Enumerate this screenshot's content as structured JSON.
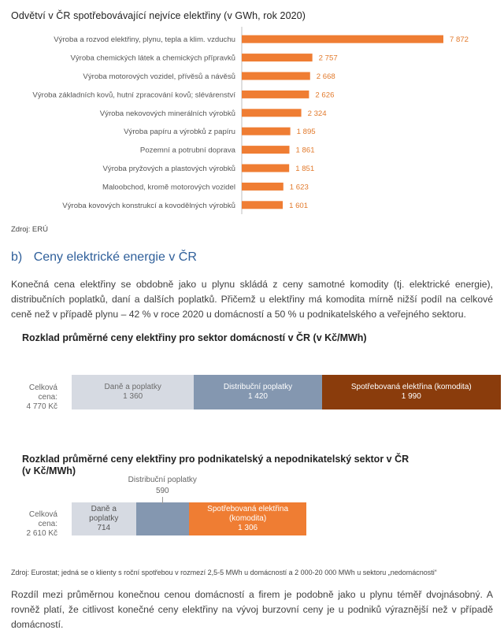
{
  "chart1": {
    "chart_data": {
      "type": "bar",
      "orientation": "horizontal",
      "title": "Odvětví v ČR spotřebovávající nejvíce elektřiny (v GWh, rok 2020)",
      "categories": [
        "Výroba a rozvod elektřiny, plynu, tepla a klim. vzduchu",
        "Výroba chemických látek a chemických přípravků",
        "Výroba motorových vozidel, přívěsů a návěsů",
        "Výroba základních kovů, hutní zpracování kovů; slévárenství",
        "Výroba nekovových minerálních výrobků",
        "Výroba papíru a výrobků z papíru",
        "Pozemní a potrubní doprava",
        "Výroba pryžových a plastových výrobků",
        "Maloobchod, kromě motorových vozidel",
        "Výroba kovových konstrukcí a kovodělných výrobků"
      ],
      "values": [
        7872,
        2757,
        2668,
        2626,
        2324,
        1895,
        1861,
        1851,
        1623,
        1601
      ],
      "value_labels": [
        "7 872",
        "2 757",
        "2 668",
        "2 626",
        "2 324",
        "1 895",
        "1 861",
        "1 851",
        "1 623",
        "1 601"
      ],
      "xlim": [
        0,
        8400
      ],
      "color": "#ef7d33"
    },
    "source": "Zdroj: ERÚ"
  },
  "section": {
    "heading_prefix": "b)",
    "heading": "Ceny elektrické energie v ČR",
    "paragraph": "Konečná cena elektřiny se obdobně jako u plynu skládá z ceny samotné komodity (tj. elektrické energie), distribučních poplatků, daní a dalších poplatků. Přičemž u elektřiny má komodita mírně nižší podíl na celkové ceně než v případě plynu – 42 % v roce 2020 u domácností a 50 % u podnikatelského a veřejného sektoru."
  },
  "chart2": {
    "chart_data": {
      "type": "bar",
      "stacked": true,
      "orientation": "horizontal",
      "title": "Rozklad průměrné ceny elektřiny pro sektor domácností v ČR (v Kč/MWh)",
      "total_label": "Celková cena:",
      "total_value": "4 770 Kč",
      "series": [
        {
          "name": "Daně a poplatky",
          "value": 1360,
          "label": "1 360",
          "color": "#d6dae2",
          "text_color": "#6b6b6b"
        },
        {
          "name": "Distribuční poplatky",
          "value": 1420,
          "label": "1 420",
          "color": "#8497b0",
          "text_color": "#ffffff"
        },
        {
          "name": "Spotřebovaná elektřina (komodita)",
          "value": 1990,
          "label": "1 990",
          "color": "#8a3c0c",
          "text_color": "#ffffff"
        }
      ]
    }
  },
  "chart3": {
    "chart_data": {
      "type": "bar",
      "stacked": true,
      "orientation": "horizontal",
      "title_line1": "Rozklad průměrné ceny elektřiny pro podnikatelský a nepodnikatelský sektor v ČR",
      "title_line2": "(v Kč/MWh)",
      "total_label": "Celková cena:",
      "total_value": "2 610 Kč",
      "scale_max": 4770,
      "series": [
        {
          "name": "Daně a poplatky",
          "value": 714,
          "label": "714",
          "color": "#d6dae2",
          "text_color": "#555555"
        },
        {
          "name": "Distribuční poplatky",
          "value": 590,
          "label": "590",
          "color": "#8497b0",
          "text_color": "#555555"
        },
        {
          "name": "Spotřebovaná elektřina (komodita)",
          "value": 1306,
          "label": "1 306",
          "color": "#ef7d33",
          "text_color": "#ffffff"
        }
      ]
    },
    "source": "Zdroj: Eurostat; jedná se o klienty s roční spotřebou v rozmezí 2,5-5 MWh u domácností a 2 000-20 000 MWh u sektoru „nedomácnosti“"
  },
  "closing_paragraph": "Rozdíl mezi průměrnou konečnou cenou domácností a firem je podobně jako u plynu téměř dvojnásobný. A rovněž platí, že citlivost konečné ceny elektřiny na vývoj burzovní ceny je u podniků výraznější než v případě domácností."
}
